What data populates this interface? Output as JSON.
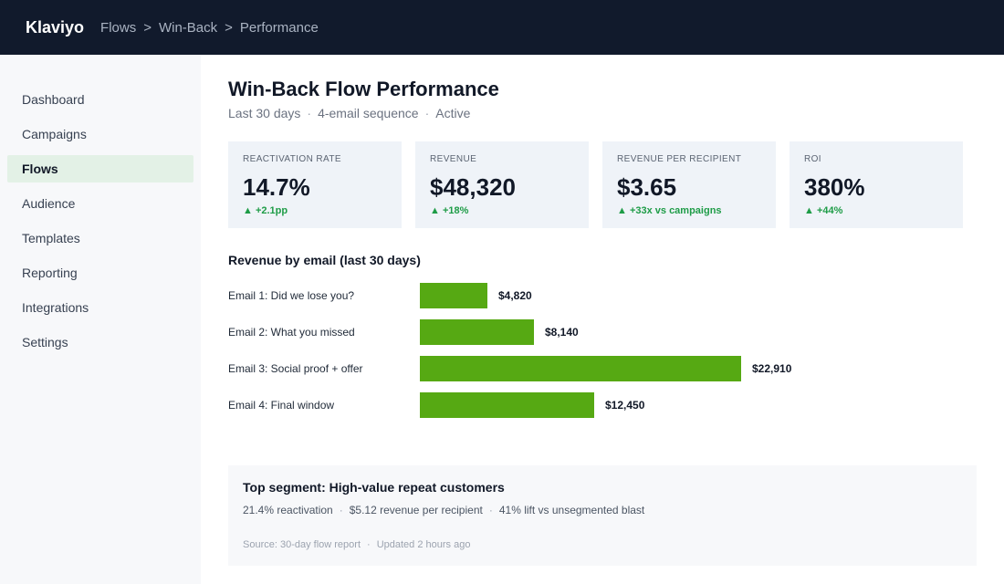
{
  "topbar": {
    "brand": "Klaviyo",
    "breadcrumbs": [
      "Flows",
      "Win-Back",
      "Performance"
    ],
    "separator": ">"
  },
  "sidebar": {
    "items": [
      {
        "label": "Dashboard",
        "active": false
      },
      {
        "label": "Campaigns",
        "active": false
      },
      {
        "label": "Flows",
        "active": true
      },
      {
        "label": "Audience",
        "active": false
      },
      {
        "label": "Templates",
        "active": false
      },
      {
        "label": "Reporting",
        "active": false
      },
      {
        "label": "Integrations",
        "active": false
      },
      {
        "label": "Settings",
        "active": false
      }
    ]
  },
  "main": {
    "title": "Win-Back Flow Performance",
    "meta": [
      "Last 30 days",
      "4-email sequence",
      "Active"
    ],
    "meta_separator": "·",
    "kpis": [
      {
        "label": "REACTIVATION RATE",
        "value": "14.7%",
        "delta": "▲ +2.1pp"
      },
      {
        "label": "REVENUE",
        "value": "$48,320",
        "delta": "▲ +18%"
      },
      {
        "label": "REVENUE PER RECIPIENT",
        "value": "$3.65",
        "delta": "▲ +33x vs campaigns"
      },
      {
        "label": "ROI",
        "value": "380%",
        "delta": "▲ +44%"
      }
    ],
    "section_title": "Revenue by email (last 30 days)",
    "insight": {
      "title": "Top segment: High-value repeat customers",
      "stats": [
        "21.4% reactivation",
        "$5.12 revenue per recipient",
        "41% lift vs unsegmented blast"
      ],
      "source": [
        "Source: 30-day flow report",
        "Updated 2 hours ago"
      ]
    }
  },
  "colors": {
    "topbar": "#111a2c",
    "bar": "#56a913",
    "positive": "#1e9c47",
    "nav_active": "#e3f1e6",
    "kpi_bg": "#eff3f8"
  },
  "chart_data": {
    "type": "bar",
    "orientation": "horizontal",
    "title": "Revenue by email (last 30 days)",
    "categories": [
      "Email 1: Did we lose you?",
      "Email 2: What you missed",
      "Email 3: Social proof + offer",
      "Email 4: Final window"
    ],
    "values": [
      4820,
      8140,
      22910,
      12450
    ],
    "value_labels": [
      "$4,820",
      "$8,140",
      "$22,910",
      "$12,450"
    ],
    "xlim": [
      0,
      25000
    ],
    "grid": false
  }
}
